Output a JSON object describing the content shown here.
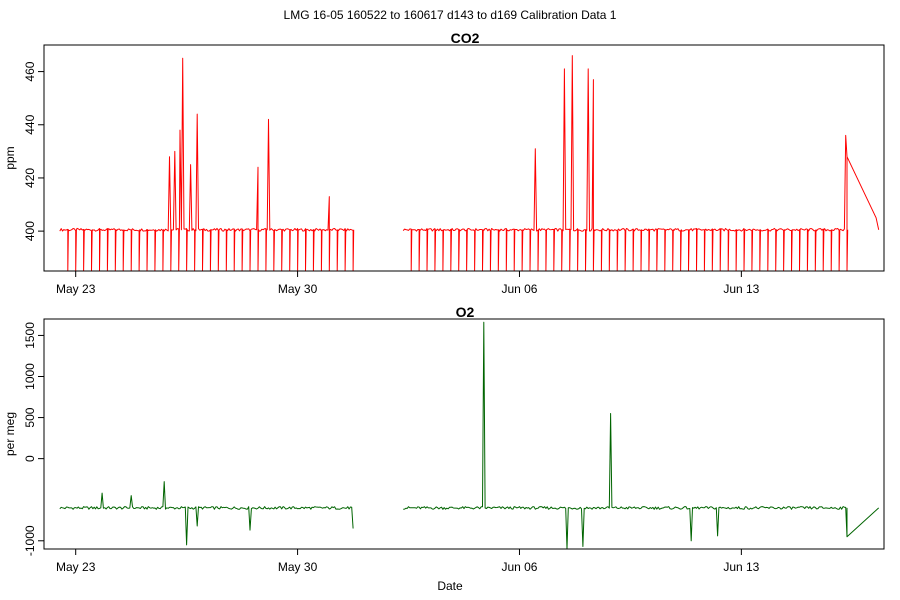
{
  "figure": {
    "supertitle": "LMG   16-05    160522 to 160617    d143 to d169   Calibration Data 1",
    "xlabel": "Date"
  },
  "chart_data": [
    {
      "type": "line",
      "title": "CO2",
      "ylabel": "ppm",
      "xlim": [
        "2016-05-22T00:00",
        "2016-06-17T12:00"
      ],
      "ylim": [
        385,
        470
      ],
      "x_ticks": [
        {
          "date": "2016-05-23",
          "label": "May 23"
        },
        {
          "date": "2016-05-30",
          "label": "May 30"
        },
        {
          "date": "2016-06-06",
          "label": "Jun 06"
        },
        {
          "date": "2016-06-13",
          "label": "Jun 13"
        }
      ],
      "y_ticks": [
        400,
        420,
        440,
        460
      ],
      "color": "#ff0000",
      "baseline": 400.5,
      "series": [
        {
          "segments": [
            {
              "start": "2016-05-22T12:00",
              "end": "2016-05-31T18:00"
            },
            {
              "start": "2016-06-02T08:00",
              "end": "2016-06-16T08:00"
            },
            {
              "start": "2016-06-16T08:00",
              "end": "2016-06-17T08:00"
            }
          ],
          "calibration_drops": {
            "interval_hours": 6,
            "value": 385
          },
          "spikes": [
            {
              "date": "2016-05-25T23:00",
              "value": 428
            },
            {
              "date": "2016-05-26T03:00",
              "value": 430
            },
            {
              "date": "2016-05-26T07:00",
              "value": 438
            },
            {
              "date": "2016-05-26T09:00",
              "value": 465
            },
            {
              "date": "2016-05-26T15:00",
              "value": 425
            },
            {
              "date": "2016-05-26T20:00",
              "value": 444
            },
            {
              "date": "2016-05-28T18:00",
              "value": 424
            },
            {
              "date": "2016-05-29T02:00",
              "value": 442
            },
            {
              "date": "2016-05-31T00:00",
              "value": 413
            },
            {
              "date": "2016-06-06T12:00",
              "value": 431
            },
            {
              "date": "2016-06-07T10:00",
              "value": 461
            },
            {
              "date": "2016-06-07T16:00",
              "value": 466
            },
            {
              "date": "2016-06-08T04:00",
              "value": 461
            },
            {
              "date": "2016-06-08T08:00",
              "value": 457
            },
            {
              "date": "2016-06-16T07:00",
              "value": 436
            },
            {
              "date": "2016-06-16T08:00",
              "value": 428
            },
            {
              "date": "2016-06-17T06:00",
              "value": 405
            }
          ]
        }
      ]
    },
    {
      "type": "line",
      "title": "O2",
      "ylabel": "per meg",
      "xlim": [
        "2016-05-22T00:00",
        "2016-06-17T12:00"
      ],
      "ylim": [
        -1100,
        1700
      ],
      "x_ticks": [
        {
          "date": "2016-05-23",
          "label": "May 23"
        },
        {
          "date": "2016-05-30",
          "label": "May 30"
        },
        {
          "date": "2016-06-06",
          "label": "Jun 06"
        },
        {
          "date": "2016-06-13",
          "label": "Jun 13"
        }
      ],
      "y_ticks": [
        -1000,
        0,
        500,
        1000,
        1500
      ],
      "color": "#006400",
      "baseline": -600,
      "series": [
        {
          "segments": [
            {
              "start": "2016-05-22T12:00",
              "end": "2016-05-31T18:00"
            },
            {
              "start": "2016-06-02T08:00",
              "end": "2016-06-16T08:00"
            },
            {
              "start": "2016-06-16T08:00",
              "end": "2016-06-17T08:00"
            }
          ],
          "spikes": [
            {
              "date": "2016-05-23T20:00",
              "value": -420
            },
            {
              "date": "2016-05-24T18:00",
              "value": -450
            },
            {
              "date": "2016-05-25T19:00",
              "value": -280
            },
            {
              "date": "2016-06-04T21:00",
              "value": 1660
            },
            {
              "date": "2016-06-08T21:00",
              "value": 550
            }
          ],
          "dips": [
            {
              "date": "2016-05-26T12:00",
              "value": -1050
            },
            {
              "date": "2016-05-26T20:00",
              "value": -820
            },
            {
              "date": "2016-05-28T12:00",
              "value": -870
            },
            {
              "date": "2016-05-31T18:00",
              "value": -850
            },
            {
              "date": "2016-06-07T12:00",
              "value": -1100
            },
            {
              "date": "2016-06-08T00:00",
              "value": -1070
            },
            {
              "date": "2016-06-11T10:00",
              "value": -1000
            },
            {
              "date": "2016-06-12T06:00",
              "value": -940
            },
            {
              "date": "2016-06-16T08:00",
              "value": -950
            }
          ]
        }
      ]
    }
  ]
}
